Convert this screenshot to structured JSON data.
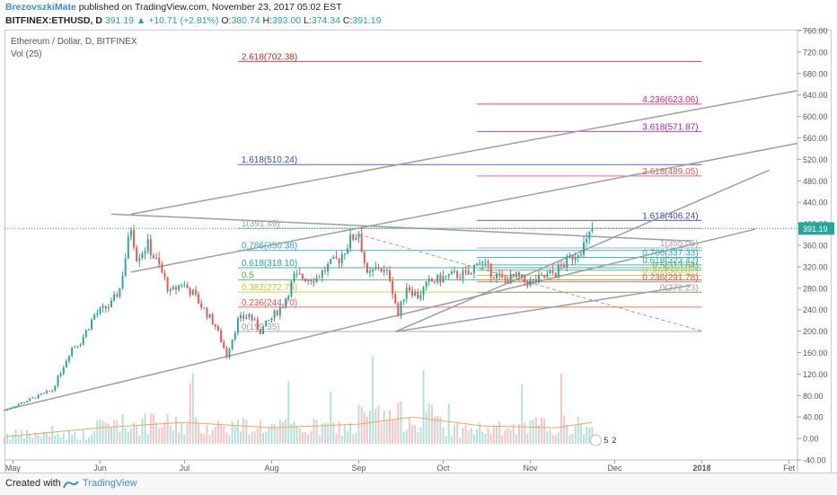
{
  "header": {
    "author": "BrezovszkiMate",
    "published": "published on TradingView.com, November 23, 2017 05:02 EST",
    "symbol": "BITFINEX:ETHUSD, D",
    "last": "391.19",
    "change": "▲ +10.71 (+2.81%)",
    "o_label": "O:",
    "o_value": "380.74",
    "h_label": "H:",
    "h_value": "393.00",
    "l_label": "L:",
    "l_value": "374.34",
    "c_label": "C:",
    "c_value": "391.19"
  },
  "pane": {
    "title": "Ethereum / Dollar, D, BITFINEX",
    "volume_label": "Vol (25)"
  },
  "footer": {
    "created_with": "Created with",
    "brand": "TradingView"
  },
  "colors": {
    "up": "#26a69a",
    "down": "#ef5350",
    "trendline": "#9e9e9e",
    "price_tag": "#26a69a"
  },
  "chart_data": {
    "type": "candlestick",
    "title": "Ethereum / Dollar, D, BITFINEX",
    "ylim": [
      -40,
      760
    ],
    "y_ticks": [
      760,
      720,
      680,
      640,
      600,
      560,
      520,
      480,
      440,
      400,
      360,
      320,
      280,
      240,
      200,
      160,
      120,
      80,
      40,
      0,
      -40
    ],
    "y_tick_labels": [
      "760.00",
      "720.00",
      "680.00",
      "640.00",
      "600.00",
      "560.00",
      "520.00",
      "480.00",
      "440.00",
      "400.00",
      "360.00",
      "320.00",
      "280.00",
      "240.00",
      "200.00",
      "160.00",
      "120.00",
      "80.00",
      "40.00",
      "0.00",
      "-40.00"
    ],
    "x_range": [
      "2017-04-28",
      "2018-02-04"
    ],
    "x_ticks": [
      {
        "date": "2017-05-01",
        "label": "May"
      },
      {
        "date": "2017-06-01",
        "label": "Jun"
      },
      {
        "date": "2017-07-01",
        "label": "Jul"
      },
      {
        "date": "2017-08-01",
        "label": "Aug"
      },
      {
        "date": "2017-09-01",
        "label": "Sep"
      },
      {
        "date": "2017-10-01",
        "label": "Oct"
      },
      {
        "date": "2017-11-01",
        "label": "Nov"
      },
      {
        "date": "2017-12-01",
        "label": "Dec"
      },
      {
        "date": "2018-01-01",
        "label": "2018"
      },
      {
        "date": "2018-02-01",
        "label": "Fet"
      }
    ],
    "last_price": 391.19,
    "close_anchors": [
      {
        "date": "2017-04-28",
        "close": 53
      },
      {
        "date": "2017-05-08",
        "close": 75
      },
      {
        "date": "2017-05-15",
        "close": 90
      },
      {
        "date": "2017-05-22",
        "close": 170
      },
      {
        "date": "2017-05-25",
        "close": 180
      },
      {
        "date": "2017-05-30",
        "close": 230
      },
      {
        "date": "2017-06-05",
        "close": 250
      },
      {
        "date": "2017-06-08",
        "close": 280
      },
      {
        "date": "2017-06-12",
        "close": 395
      },
      {
        "date": "2017-06-14",
        "close": 340
      },
      {
        "date": "2017-06-18",
        "close": 360
      },
      {
        "date": "2017-06-22",
        "close": 320
      },
      {
        "date": "2017-06-26",
        "close": 270
      },
      {
        "date": "2017-06-30",
        "close": 290
      },
      {
        "date": "2017-07-04",
        "close": 270
      },
      {
        "date": "2017-07-08",
        "close": 240
      },
      {
        "date": "2017-07-12",
        "close": 210
      },
      {
        "date": "2017-07-16",
        "close": 155
      },
      {
        "date": "2017-07-20",
        "close": 220
      },
      {
        "date": "2017-07-24",
        "close": 230
      },
      {
        "date": "2017-07-28",
        "close": 200
      },
      {
        "date": "2017-08-01",
        "close": 225
      },
      {
        "date": "2017-08-05",
        "close": 250
      },
      {
        "date": "2017-08-09",
        "close": 300
      },
      {
        "date": "2017-08-13",
        "close": 300
      },
      {
        "date": "2017-08-17",
        "close": 300
      },
      {
        "date": "2017-08-21",
        "close": 320
      },
      {
        "date": "2017-08-25",
        "close": 335
      },
      {
        "date": "2017-08-29",
        "close": 370
      },
      {
        "date": "2017-09-01",
        "close": 385
      },
      {
        "date": "2017-09-04",
        "close": 300
      },
      {
        "date": "2017-09-08",
        "close": 320
      },
      {
        "date": "2017-09-12",
        "close": 300
      },
      {
        "date": "2017-09-15",
        "close": 230
      },
      {
        "date": "2017-09-18",
        "close": 285
      },
      {
        "date": "2017-09-22",
        "close": 265
      },
      {
        "date": "2017-09-26",
        "close": 290
      },
      {
        "date": "2017-10-01",
        "close": 300
      },
      {
        "date": "2017-10-06",
        "close": 305
      },
      {
        "date": "2017-10-11",
        "close": 305
      },
      {
        "date": "2017-10-13",
        "close": 335
      },
      {
        "date": "2017-10-17",
        "close": 315
      },
      {
        "date": "2017-10-22",
        "close": 295
      },
      {
        "date": "2017-10-27",
        "close": 300
      },
      {
        "date": "2017-11-01",
        "close": 290
      },
      {
        "date": "2017-11-06",
        "close": 300
      },
      {
        "date": "2017-11-10",
        "close": 310
      },
      {
        "date": "2017-11-14",
        "close": 330
      },
      {
        "date": "2017-11-18",
        "close": 350
      },
      {
        "date": "2017-11-21",
        "close": 365
      },
      {
        "date": "2017-11-23",
        "close": 391.19
      }
    ],
    "volume_bands": [
      {
        "from": "2017-04-28",
        "to": "2017-05-31",
        "height": 10
      },
      {
        "from": "2017-06-01",
        "to": "2017-06-30",
        "height": 22
      },
      {
        "from": "2017-07-01",
        "to": "2017-07-31",
        "height": 20
      },
      {
        "from": "2017-08-01",
        "to": "2017-08-31",
        "height": 18
      },
      {
        "from": "2017-09-01",
        "to": "2017-09-30",
        "height": 30
      },
      {
        "from": "2017-10-01",
        "to": "2017-10-31",
        "height": 16
      },
      {
        "from": "2017-11-01",
        "to": "2017-11-23",
        "height": 20
      }
    ],
    "volume_ma_anchors": [
      {
        "date": "2017-04-28",
        "v": 8
      },
      {
        "date": "2017-06-01",
        "v": 18
      },
      {
        "date": "2017-07-01",
        "v": 24
      },
      {
        "date": "2017-08-01",
        "v": 18
      },
      {
        "date": "2017-09-01",
        "v": 22
      },
      {
        "date": "2017-09-20",
        "v": 30
      },
      {
        "date": "2017-10-15",
        "v": 20
      },
      {
        "date": "2017-11-10",
        "v": 18
      },
      {
        "date": "2017-11-23",
        "v": 24
      }
    ],
    "fib_left": {
      "from": "2017-07-20",
      "to": "2018-01-01",
      "levels": [
        {
          "ratio": "2.618",
          "value": 702.38,
          "label": "2.618(702.38)",
          "color": "#c62828"
        },
        {
          "ratio": "1.618",
          "value": 510.24,
          "label": "1.618(510.24)",
          "color": "#3949ab"
        },
        {
          "ratio": "1",
          "value": 391.49,
          "label": "1(391.49)",
          "color": "#9e9e9e"
        },
        {
          "ratio": "0.786",
          "value": 350.38,
          "label": "0.786(350.38)",
          "color": "#26a6c6"
        },
        {
          "ratio": "0.618",
          "value": 318.1,
          "label": "0.618(318.10)",
          "color": "#26a69a"
        },
        {
          "ratio": "0.5",
          "value": 295.42,
          "label": "0.5",
          "color": "#4caf50"
        },
        {
          "ratio": "0.382",
          "value": 272.75,
          "label": "0.382(272.75)",
          "color": "#c0ca33"
        },
        {
          "ratio": "0.236",
          "value": 244.7,
          "label": "0.236(244.70)",
          "color": "#ef5350"
        },
        {
          "ratio": "0",
          "value": 199.35,
          "label": "0(199.35)",
          "color": "#9e9e9e"
        }
      ]
    },
    "fib_right": {
      "from": "2017-10-13",
      "to": "2018-01-01",
      "levels": [
        {
          "ratio": "4.236",
          "value": 623.06,
          "label": "4.236(623.06)",
          "color": "#e91e63"
        },
        {
          "ratio": "3.618",
          "value": 571.87,
          "label": "3.618(571.87)",
          "color": "#9c27b0"
        },
        {
          "ratio": "2.618",
          "value": 489.05,
          "label": "2.618(489.05)",
          "color": "#ef5350"
        },
        {
          "ratio": "1.618",
          "value": 406.24,
          "label": "1.618(406.24)",
          "color": "#3949ab"
        },
        {
          "ratio": "1",
          "value": 355.05,
          "label": "1(355.05)",
          "color": "#9e9e9e"
        },
        {
          "ratio": "0.786",
          "value": 337.33,
          "label": "0.786(337.33)",
          "color": "#26a6c6"
        },
        {
          "ratio": "0.618",
          "value": 323.42,
          "label": "0.618(323.42)",
          "color": "#26a69a"
        },
        {
          "ratio": "0.5",
          "value": 313.64,
          "label": "0.5(313.64)",
          "color": "#4caf50"
        },
        {
          "ratio": "0.382",
          "value": 303.87,
          "label": "0.382(303.87)",
          "color": "#c0ca33"
        },
        {
          "ratio": "0.236",
          "value": 291.78,
          "label": "0.236(291.78)",
          "color": "#ef5350"
        },
        {
          "ratio": "0",
          "value": 272.23,
          "label": "0(272.23)",
          "color": "#9e9e9e"
        }
      ]
    },
    "trendlines": [
      {
        "name": "lower-channel-base",
        "from": {
          "date": "2017-04-28",
          "value": 53
        },
        "to": {
          "date": "2018-01-20",
          "value": 390
        },
        "style": "solid"
      },
      {
        "name": "lower-channel-mid",
        "from": {
          "date": "2017-09-14",
          "value": 199
        },
        "to": {
          "date": "2017-12-28",
          "value": 285
        },
        "style": "solid"
      },
      {
        "name": "middle-channel",
        "from": {
          "date": "2017-06-12",
          "value": 310
        },
        "to": {
          "date": "2018-02-04",
          "value": 550
        },
        "style": "solid"
      },
      {
        "name": "upper-channel",
        "from": {
          "date": "2017-06-12",
          "value": 418
        },
        "to": {
          "date": "2018-02-04",
          "value": 648
        },
        "style": "solid"
      },
      {
        "name": "inner-rising",
        "from": {
          "date": "2017-09-14",
          "value": 199
        },
        "to": {
          "date": "2018-01-25",
          "value": 500
        },
        "style": "solid"
      },
      {
        "name": "descending-resistance",
        "from": {
          "date": "2017-06-05",
          "value": 418
        },
        "to": {
          "date": "2017-12-28",
          "value": 368
        },
        "style": "solid"
      },
      {
        "name": "descending-dashed",
        "from": {
          "date": "2017-09-01",
          "value": 380
        },
        "to": {
          "date": "2018-01-01",
          "value": 200
        },
        "style": "dashed"
      }
    ]
  }
}
